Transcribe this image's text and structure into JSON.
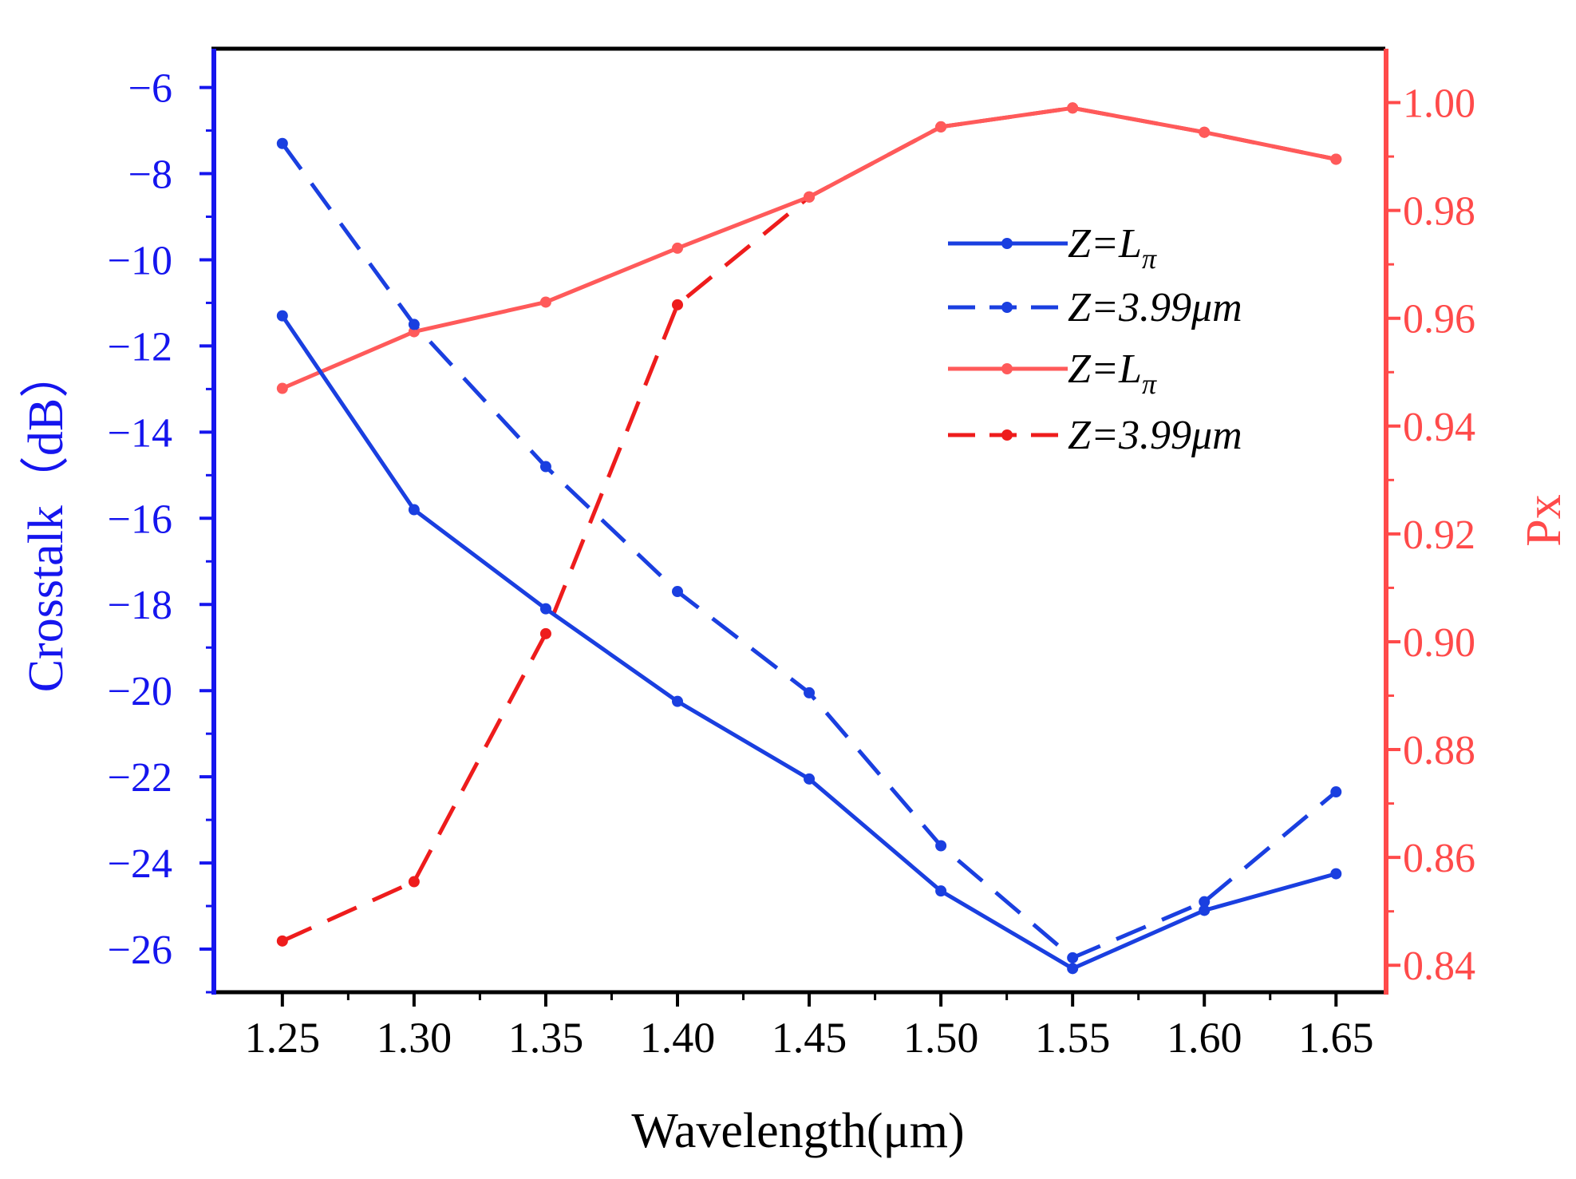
{
  "chart_data": {
    "type": "line",
    "xlabel": "Wavelength(μm)",
    "ylabel_left": "Crosstalk（dB）",
    "ylabel_right": "Px",
    "x": [
      1.25,
      1.3,
      1.35,
      1.4,
      1.45,
      1.5,
      1.55,
      1.6,
      1.65
    ],
    "x_tick_labels": [
      "1.25",
      "1.30",
      "1.35",
      "1.40",
      "1.45",
      "1.50",
      "1.55",
      "1.60",
      "1.65"
    ],
    "xlim": [
      1.224,
      1.669
    ],
    "ylim_left": [
      -27.0,
      -5.1
    ],
    "ylim_right": [
      0.835,
      1.01
    ],
    "yticks_left": [
      -6,
      -8,
      -10,
      -12,
      -14,
      -16,
      -18,
      -20,
      -22,
      -24,
      -26
    ],
    "ytick_labels_left": [
      "−6",
      "−8",
      "−10",
      "−12",
      "−14",
      "−16",
      "−18",
      "−20",
      "−22",
      "−24",
      "−26"
    ],
    "yticks_right": [
      0.84,
      0.86,
      0.88,
      0.9,
      0.92,
      0.94,
      0.96,
      0.98,
      1.0
    ],
    "ytick_labels_right": [
      "0.84",
      "0.86",
      "0.88",
      "0.90",
      "0.92",
      "0.94",
      "0.96",
      "0.98",
      "1.00"
    ],
    "colors": {
      "left_axis": "#1515ee",
      "right_axis": "#ff4a4a",
      "blue": "#1a3fe0",
      "red_solid": "#ff5a5a",
      "red_dashed": "#ee1c1c"
    },
    "series": [
      {
        "name": "Z=Lπ",
        "name_main": "Z=L",
        "name_sub": "π",
        "axis": "left",
        "style": "solid",
        "color": "#1a3fe0",
        "values": [
          -11.3,
          -15.8,
          -18.1,
          -20.25,
          -22.05,
          -24.65,
          -26.45,
          -25.1,
          -24.25
        ]
      },
      {
        "name": "Z=3.99μm",
        "name_main": "Z=3.99μm",
        "name_sub": "",
        "axis": "left",
        "style": "dashed",
        "color": "#1a3fe0",
        "values": [
          -7.3,
          -11.5,
          -14.8,
          -17.7,
          -20.05,
          -23.6,
          -26.2,
          -24.9,
          -22.35
        ]
      },
      {
        "name": "Z=Lπ",
        "name_main": "Z=L",
        "name_sub": "π",
        "axis": "right",
        "style": "solid",
        "color": "#ff5a5a",
        "values": [
          0.947,
          0.9575,
          0.963,
          0.973,
          0.9825,
          0.9955,
          0.999,
          0.9945,
          0.9895
        ]
      },
      {
        "name": "Z=3.99μm",
        "name_main": "Z=3.99μm",
        "name_sub": "",
        "axis": "right",
        "style": "dashed",
        "color": "#ee1c1c",
        "values": [
          0.8445,
          0.8555,
          0.9015,
          0.9625,
          0.9825,
          0.9955,
          0.999,
          0.9945,
          0.9895
        ]
      }
    ],
    "legend_position": "upper-right inside plot"
  }
}
